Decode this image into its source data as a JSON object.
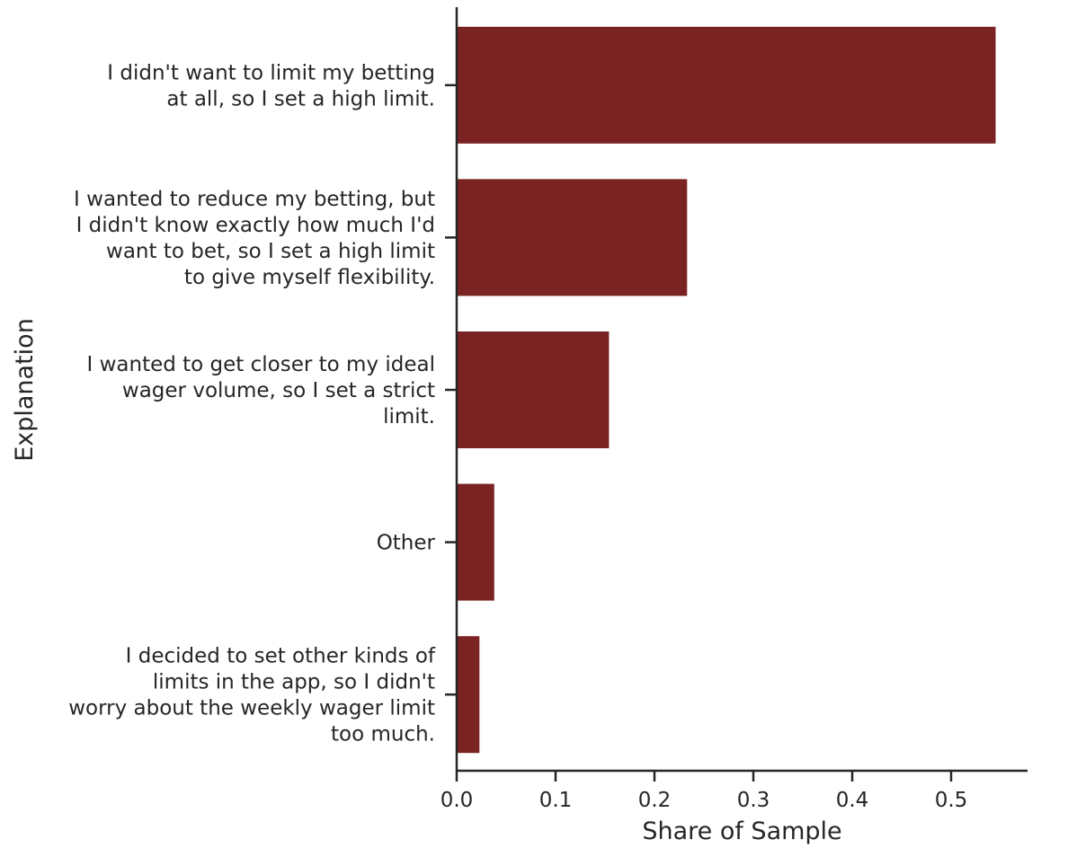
{
  "chart_data": {
    "type": "bar",
    "orientation": "horizontal",
    "categories": [
      [
        "I didn't want to limit my betting",
        "at all, so I set a high limit."
      ],
      [
        "I wanted to reduce my betting, but",
        "I didn't know exactly how much I'd",
        "want to bet, so I set a high limit",
        "to give myself flexibility."
      ],
      [
        "I wanted to get closer to my ideal",
        "wager volume, so I set a strict",
        "limit."
      ],
      [
        "Other"
      ],
      [
        "I decided to set other kinds of",
        "limits in the app, so I didn't",
        "worry about the weekly wager limit",
        "too much."
      ]
    ],
    "values": [
      0.545,
      0.233,
      0.154,
      0.038,
      0.023
    ],
    "xlabel": "Share of Sample",
    "ylabel": "Explanation",
    "xlim": [
      0,
      0.57
    ],
    "xticks": [
      "0.0",
      "0.1",
      "0.2",
      "0.3",
      "0.4",
      "0.5"
    ],
    "bar_color": "#7b2323",
    "grid": false,
    "legend": "none"
  }
}
